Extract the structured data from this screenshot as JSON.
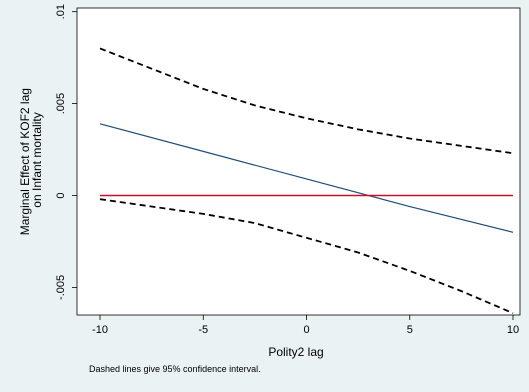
{
  "chart_data": {
    "type": "line",
    "xlabel": "Polity2 lag",
    "ylabel_lines": [
      "Marginal Effect of KOF2 lag",
      "on Infant mortality"
    ],
    "note": "Dashed lines give 95% confidence interval.",
    "xlim": [
      -10,
      10
    ],
    "ylim": [
      -0.0065,
      0.0102
    ],
    "x_ticks": [
      -10,
      -5,
      0,
      5,
      10
    ],
    "x_tick_labels": [
      "-10",
      "-5",
      "0",
      "5",
      "10"
    ],
    "y_ticks": [
      -0.005,
      0,
      0.005,
      0.01
    ],
    "y_tick_labels": [
      "-.005",
      "0",
      ".005",
      ".01"
    ],
    "grid": false,
    "colors": {
      "background": "#eaf2f3",
      "plot_background": "#ffffff",
      "estimate": "#1f4e79",
      "ci": "#000000",
      "reference": "#c8102e"
    },
    "series": [
      {
        "role": "estimate",
        "x": [
          -10,
          -5,
          0,
          5,
          10
        ],
        "y": [
          0.0039,
          0.0024,
          0.0009,
          -0.0006,
          -0.002
        ]
      },
      {
        "role": "upper-ci",
        "x": [
          -10,
          -7.5,
          -5,
          -2.5,
          0,
          2.5,
          5,
          7.5,
          10
        ],
        "y": [
          0.008,
          0.0069,
          0.0058,
          0.0049,
          0.0042,
          0.0036,
          0.0031,
          0.0027,
          0.0023
        ]
      },
      {
        "role": "lower-ci",
        "x": [
          -10,
          -7.5,
          -5,
          -2.5,
          0,
          2.5,
          5,
          7.5,
          10
        ],
        "y": [
          -0.0002,
          -0.0006,
          -0.001,
          -0.0015,
          -0.0023,
          -0.0031,
          -0.0041,
          -0.0052,
          -0.0064
        ]
      },
      {
        "role": "reference",
        "x": [
          -10,
          10
        ],
        "y": [
          0,
          0
        ]
      }
    ]
  }
}
